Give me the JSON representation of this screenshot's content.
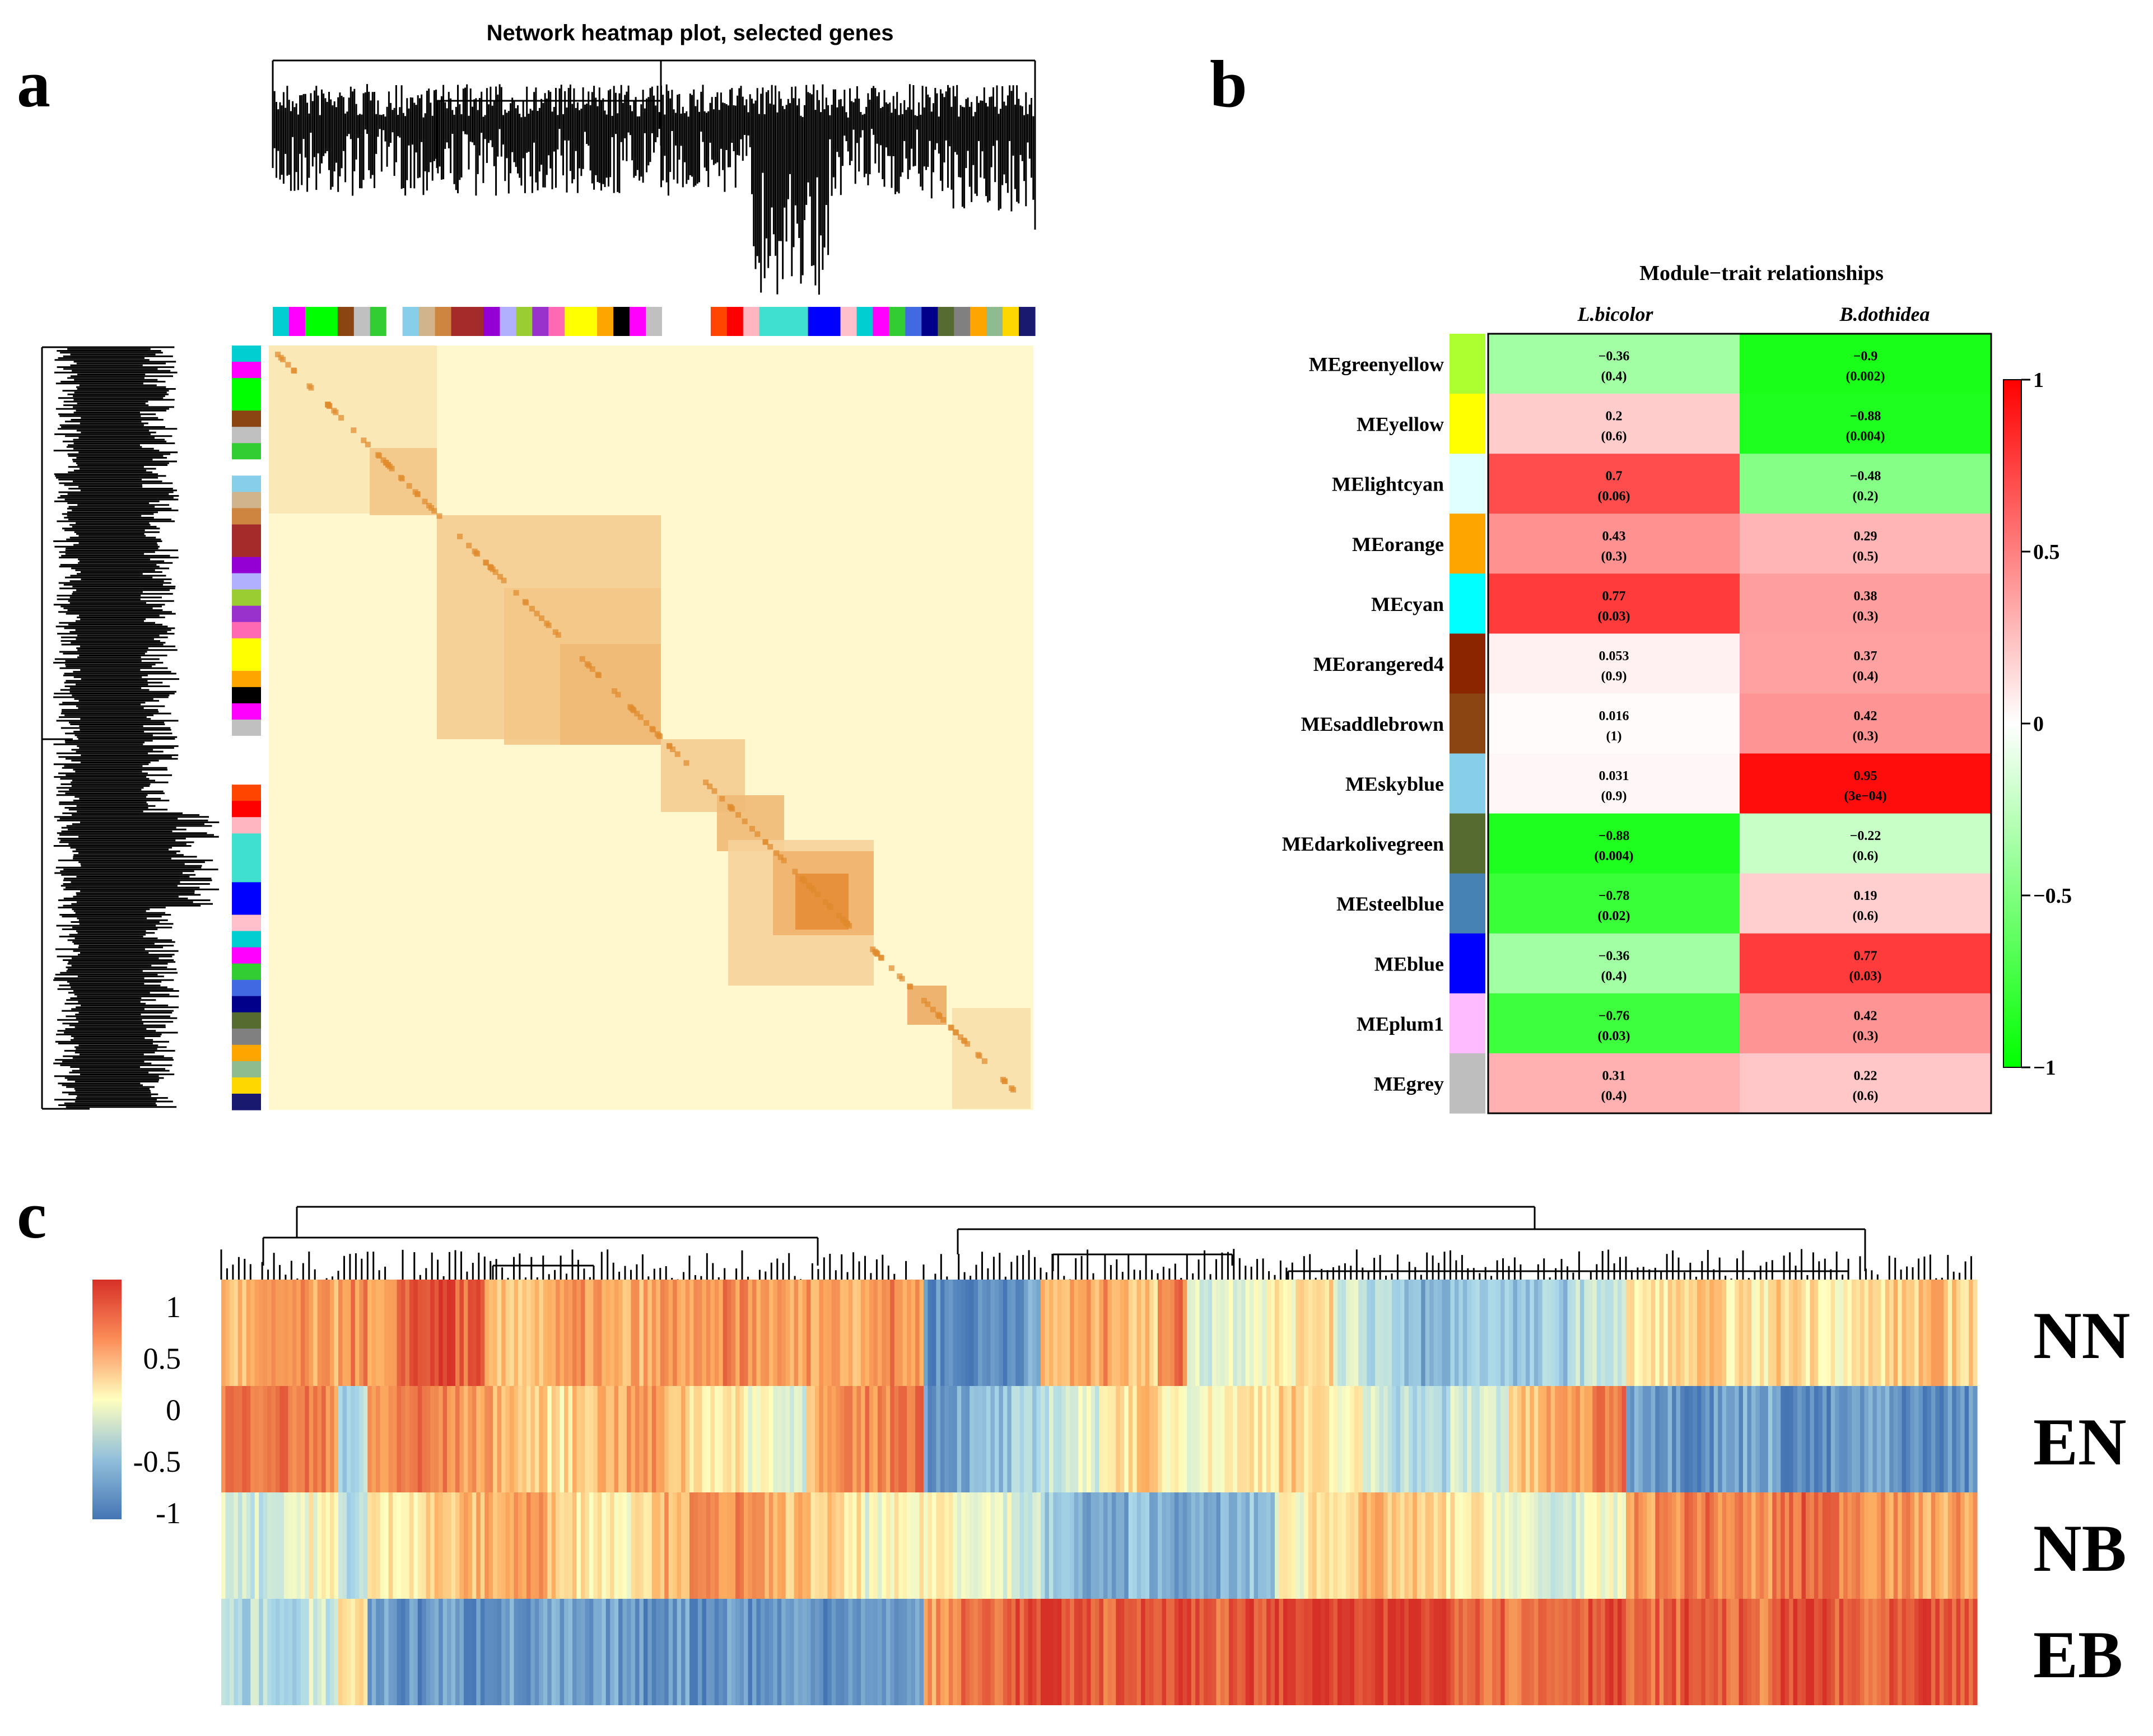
{
  "panel_labels": {
    "a": "a",
    "b": "b",
    "c": "c"
  },
  "chart_data": [
    {
      "panel": "a",
      "type": "heatmap",
      "title": "Network heatmap plot, selected genes",
      "description_values": "TOM heatmap of selected genes with gene dendrogram and module color bars",
      "colors": {
        "low": "#fff9d0",
        "mid": "#f6c46e",
        "high": "#d6650a"
      },
      "module_bar_colors": [
        "#00ced1",
        "#ff00ff",
        "#00ff00",
        "#00ff00",
        "#8b4513",
        "#c0c0c0",
        "#32cd32",
        "#ffffff",
        "#87ceeb",
        "#d2b48c",
        "#cd853f",
        "#a52a2a",
        "#a52a2a",
        "#9400d3",
        "#b0b0ff",
        "#9acd32",
        "#9932cc",
        "#ff69b4",
        "#ffff00",
        "#ffff00",
        "#ffa500",
        "#000000",
        "#ff00ff",
        "#c0c0c0",
        "#ffffff",
        "#ffffff",
        "#ffffff",
        "#ff4500",
        "#ff0000",
        "#ffb6c1",
        "#40e0d0",
        "#40e0d0",
        "#40e0d0",
        "#0000ff",
        "#0000ff",
        "#ffc0cb",
        "#00ced1",
        "#ff00ff",
        "#32cd32",
        "#4169e1",
        "#00008b",
        "#556b2f",
        "#808080",
        "#ffa500",
        "#8fbc8f",
        "#ffd700",
        "#191970"
      ]
    },
    {
      "panel": "b",
      "type": "heatmap",
      "title": "Module−trait relationships",
      "columns": [
        "L.bicolor",
        "B.dothidea"
      ],
      "rows": [
        {
          "name": "MEgreenyellow",
          "color": "#adff2f",
          "cells": [
            {
              "r": "−0.36",
              "p": "(0.4)",
              "v": -0.36
            },
            {
              "r": "−0.9",
              "p": "(0.002)",
              "v": -0.9
            }
          ]
        },
        {
          "name": "MEyellow",
          "color": "#ffff00",
          "cells": [
            {
              "r": "0.2",
              "p": "(0.6)",
              "v": 0.2
            },
            {
              "r": "−0.88",
              "p": "(0.004)",
              "v": -0.88
            }
          ]
        },
        {
          "name": "MElightcyan",
          "color": "#e0ffff",
          "cells": [
            {
              "r": "0.7",
              "p": "(0.06)",
              "v": 0.7
            },
            {
              "r": "−0.48",
              "p": "(0.2)",
              "v": -0.48
            }
          ]
        },
        {
          "name": "MEorange",
          "color": "#ffa500",
          "cells": [
            {
              "r": "0.43",
              "p": "(0.3)",
              "v": 0.43
            },
            {
              "r": "0.29",
              "p": "(0.5)",
              "v": 0.29
            }
          ]
        },
        {
          "name": "MEcyan",
          "color": "#00ffff",
          "cells": [
            {
              "r": "0.77",
              "p": "(0.03)",
              "v": 0.77
            },
            {
              "r": "0.38",
              "p": "(0.3)",
              "v": 0.38
            }
          ]
        },
        {
          "name": "MEorangered4",
          "color": "#8b2500",
          "cells": [
            {
              "r": "0.053",
              "p": "(0.9)",
              "v": 0.053
            },
            {
              "r": "0.37",
              "p": "(0.4)",
              "v": 0.37
            }
          ]
        },
        {
          "name": "MEsaddlebrown",
          "color": "#8b4513",
          "cells": [
            {
              "r": "0.016",
              "p": "(1)",
              "v": 0.016
            },
            {
              "r": "0.42",
              "p": "(0.3)",
              "v": 0.42
            }
          ]
        },
        {
          "name": "MEskyblue",
          "color": "#87ceeb",
          "cells": [
            {
              "r": "0.031",
              "p": "(0.9)",
              "v": 0.031
            },
            {
              "r": "0.95",
              "p": "(3e−04)",
              "v": 0.95
            }
          ]
        },
        {
          "name": "MEdarkolivegreen",
          "color": "#556b2f",
          "cells": [
            {
              "r": "−0.88",
              "p": "(0.004)",
              "v": -0.88
            },
            {
              "r": "−0.22",
              "p": "(0.6)",
              "v": -0.22
            }
          ]
        },
        {
          "name": "MEsteelblue",
          "color": "#4682b4",
          "cells": [
            {
              "r": "−0.78",
              "p": "(0.02)",
              "v": -0.78
            },
            {
              "r": "0.19",
              "p": "(0.6)",
              "v": 0.19
            }
          ]
        },
        {
          "name": "MEblue",
          "color": "#0000ff",
          "cells": [
            {
              "r": "−0.36",
              "p": "(0.4)",
              "v": -0.36
            },
            {
              "r": "0.77",
              "p": "(0.03)",
              "v": 0.77
            }
          ]
        },
        {
          "name": "MEplum1",
          "color": "#ffbbff",
          "cells": [
            {
              "r": "−0.76",
              "p": "(0.03)",
              "v": -0.76
            },
            {
              "r": "0.42",
              "p": "(0.3)",
              "v": 0.42
            }
          ]
        },
        {
          "name": "MEgrey",
          "color": "#bebebe",
          "cells": [
            {
              "r": "0.31",
              "p": "(0.4)",
              "v": 0.31
            },
            {
              "r": "0.22",
              "p": "(0.6)",
              "v": 0.22
            }
          ]
        }
      ],
      "scale": {
        "ticks": [
          "1",
          "0.5",
          "0",
          "−0.5",
          "−1"
        ],
        "values": [
          1,
          0.5,
          0,
          -0.5,
          -1
        ],
        "colors": {
          "neg": "#00ff00",
          "mid": "#ffffff",
          "pos": "#ff0000"
        }
      }
    },
    {
      "panel": "c",
      "type": "heatmap",
      "rows": [
        "NN",
        "EN",
        "NB",
        "EB"
      ],
      "scale": {
        "ticks": [
          "1",
          "0.5",
          "0",
          "-0.5",
          "-1"
        ],
        "values": [
          1,
          0.5,
          0,
          -0.5,
          -1
        ],
        "colors": {
          "neg": "#4575b4",
          "mid": "#ffffbf",
          "pos": "#d73027"
        }
      },
      "row_patterns": {
        "NN": [
          0.4,
          0.5,
          0.6,
          0.5,
          0.7,
          0.4,
          1.0,
          1.1,
          0.9,
          0.3,
          0.4,
          0.5,
          0.6,
          0.4,
          0.5,
          0.6,
          0.5,
          0.7,
          0.6,
          0.5,
          0.6,
          0.5,
          0.7,
          0.6,
          -1.0,
          -1.1,
          -1.0,
          -0.9,
          0.4,
          0.5,
          0.6,
          0.3,
          0.8,
          -0.2,
          -0.1,
          0.0,
          0.1,
          0.3,
          -0.2,
          -0.4,
          -0.7,
          -0.8,
          -0.6,
          -0.5,
          -0.7,
          -0.6,
          -0.4,
          -0.3,
          0.1,
          0.2,
          0.3,
          0.2,
          0.1,
          0.3,
          0.2,
          0.1,
          0.2,
          0.3,
          0.4,
          0.3
        ],
        "EN": [
          0.8,
          0.9,
          0.8,
          0.7,
          -0.5,
          0.6,
          0.8,
          0.7,
          0.6,
          0.5,
          0.3,
          0.2,
          0.4,
          0.5,
          0.6,
          0.4,
          0.2,
          0.1,
          0.0,
          -0.2,
          0.5,
          0.6,
          0.7,
          0.9,
          -0.9,
          -0.8,
          -0.7,
          -0.6,
          -0.3,
          -0.2,
          0.2,
          0.3,
          0.1,
          0.0,
          0.1,
          0.2,
          0.3,
          0.1,
          0.0,
          -0.2,
          -0.4,
          -0.5,
          -0.3,
          -0.2,
          0.3,
          0.5,
          0.6,
          0.8,
          -0.8,
          -0.9,
          -1.0,
          -0.9,
          -0.8,
          -1.0,
          -1.1,
          -1.0,
          -0.9,
          -1.0,
          -1.1,
          -1.0
        ],
        "NB": [
          -0.2,
          -0.3,
          -0.1,
          0.0,
          -0.4,
          0.1,
          0.2,
          0.3,
          0.4,
          0.5,
          0.6,
          0.4,
          0.2,
          0.1,
          0.3,
          0.5,
          0.6,
          0.7,
          0.5,
          0.4,
          0.3,
          0.1,
          -0.1,
          0.0,
          0.1,
          0.0,
          -0.1,
          -0.3,
          -0.6,
          -0.8,
          -0.9,
          -0.7,
          -0.8,
          -0.9,
          -0.8,
          -0.7,
          0.0,
          0.2,
          0.3,
          0.4,
          0.3,
          0.2,
          0.1,
          0.0,
          -0.2,
          -0.3,
          -0.2,
          -0.1,
          0.6,
          0.7,
          0.8,
          0.7,
          0.6,
          0.8,
          0.9,
          0.8,
          0.7,
          0.6,
          0.5,
          0.6
        ],
        "EB": [
          -0.5,
          -0.4,
          -0.6,
          -0.3,
          0.2,
          -0.9,
          -1.0,
          -0.9,
          -1.0,
          -0.9,
          -1.0,
          -0.9,
          -1.0,
          -0.9,
          -1.0,
          -0.9,
          -1.0,
          -0.9,
          -1.0,
          -0.9,
          -1.0,
          -0.9,
          -1.0,
          -0.9,
          0.6,
          0.8,
          0.9,
          1.0,
          1.1,
          1.0,
          0.9,
          1.0,
          1.1,
          1.0,
          0.9,
          1.0,
          1.1,
          1.2,
          1.1,
          1.0,
          1.2,
          1.1,
          1.0,
          0.9,
          0.8,
          0.9,
          1.0,
          1.1,
          0.8,
          0.9,
          1.0,
          0.9,
          0.8,
          1.0,
          1.1,
          0.9,
          0.8,
          0.9,
          1.0,
          0.9
        ]
      }
    }
  ]
}
